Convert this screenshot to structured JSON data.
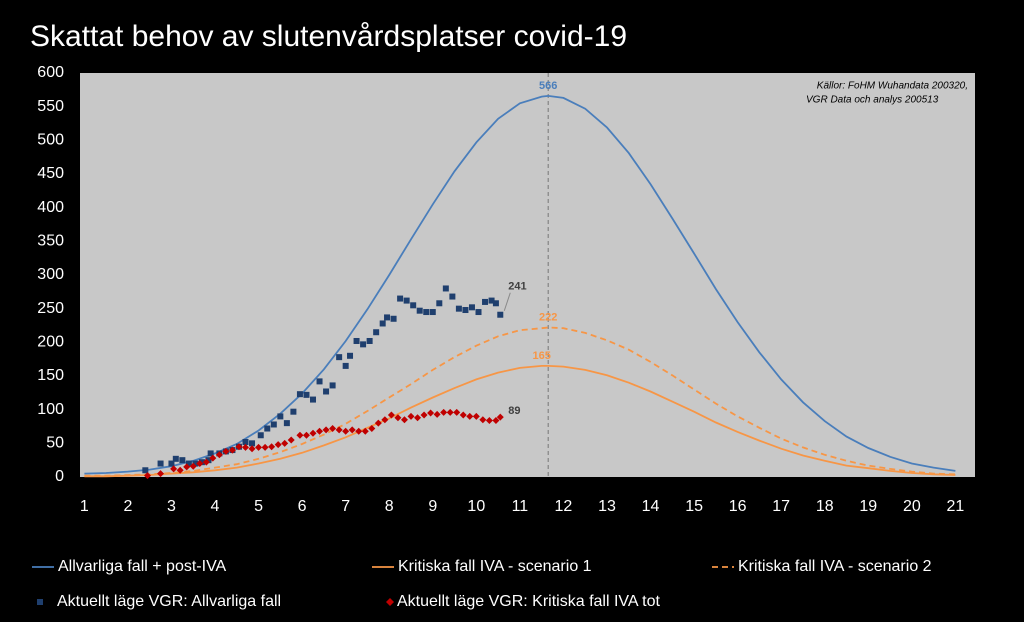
{
  "chart_data": {
    "type": "line",
    "title": "Skattat behov av slutenvårdsplatser covid-19",
    "source_note": [
      "Källor: FoHM Wuhandata 200320,",
      "VGR Data och analys 200513"
    ],
    "xlim": [
      0.9,
      21.45
    ],
    "xticks": [
      1,
      2,
      3,
      4,
      5,
      6,
      7,
      8,
      9,
      10,
      11,
      12,
      13,
      14,
      15,
      16,
      17,
      18,
      19,
      20,
      21
    ],
    "ylim": [
      0,
      600
    ],
    "yticks": [
      0,
      50,
      100,
      150,
      200,
      250,
      300,
      350,
      400,
      450,
      500,
      550,
      600
    ],
    "grid": false,
    "peak_marker": true,
    "x": [
      1,
      1.5,
      2,
      2.5,
      3,
      3.5,
      4,
      4.5,
      5,
      5.5,
      6,
      6.5,
      7,
      7.5,
      8,
      8.5,
      9,
      9.5,
      10,
      10.5,
      11,
      11.5,
      11.65,
      12,
      12.5,
      13,
      13.5,
      14,
      14.5,
      15,
      15.5,
      16,
      16.5,
      17,
      17.5,
      18,
      18.5,
      19,
      19.5,
      20,
      20.5,
      21
    ],
    "series": [
      {
        "name": "Allvarliga fall + post-IVA",
        "type": "line",
        "style": "solid",
        "color": "#4a7ebb",
        "label": "max",
        "label_color": "#4a7ebb",
        "values": [
          5,
          6,
          8,
          11,
          16,
          24,
          35,
          49,
          69,
          94,
          124,
          160,
          202,
          249,
          300,
          353,
          405,
          454,
          497,
          532,
          555,
          565,
          566,
          563,
          547,
          519,
          481,
          435,
          384,
          332,
          279,
          230,
          185,
          145,
          111,
          83,
          60,
          43,
          30,
          20,
          14,
          9
        ]
      },
      {
        "name": "Kritiska fall IVA - scenario 1",
        "type": "line",
        "style": "solid",
        "color": "#f79646",
        "label": "max",
        "label_color": "#f79646",
        "values": [
          1,
          1,
          2,
          3,
          5,
          7,
          10,
          14,
          20,
          27,
          36,
          47,
          59,
          73,
          87,
          103,
          118,
          132,
          145,
          155,
          162,
          165,
          165,
          164,
          159,
          151,
          140,
          127,
          112,
          97,
          81,
          67,
          54,
          42,
          32,
          24,
          17,
          13,
          9,
          6,
          4,
          3
        ]
      },
      {
        "name": "Kritiska fall IVA - scenario 2",
        "type": "line",
        "style": "dashed",
        "color": "#f79646",
        "label": "max",
        "label_color": "#f79646",
        "values": [
          2,
          2,
          3,
          4,
          6,
          9,
          14,
          19,
          27,
          37,
          49,
          63,
          79,
          98,
          118,
          138,
          159,
          178,
          195,
          209,
          218,
          221,
          222,
          221,
          214,
          203,
          189,
          171,
          151,
          130,
          109,
          90,
          73,
          57,
          44,
          33,
          24,
          17,
          12,
          8,
          5,
          4
        ]
      },
      {
        "name": "Aktuellt läge VGR: Allvarliga fall",
        "type": "scatter",
        "marker": "square",
        "color": "#1f3f6e",
        "label": "last",
        "label_color": "#404040",
        "x": [
          2.4,
          2.75,
          3.0,
          3.1,
          3.25,
          3.4,
          3.55,
          3.7,
          3.85,
          3.9,
          4.1,
          4.25,
          4.4,
          4.55,
          4.7,
          4.85,
          5.05,
          5.2,
          5.35,
          5.5,
          5.65,
          5.8,
          5.95,
          6.1,
          6.25,
          6.4,
          6.55,
          6.7,
          6.85,
          7.0,
          7.1,
          7.25,
          7.4,
          7.55,
          7.7,
          7.85,
          7.95,
          8.1,
          8.25,
          8.4,
          8.55,
          8.7,
          8.85,
          9.0,
          9.15,
          9.3,
          9.45,
          9.6,
          9.75,
          9.9,
          10.05,
          10.2,
          10.35,
          10.45,
          10.55
        ],
        "values": [
          10,
          20,
          20,
          27,
          25,
          20,
          20,
          22,
          25,
          35,
          35,
          38,
          40,
          45,
          52,
          50,
          62,
          72,
          78,
          90,
          80,
          97,
          123,
          122,
          115,
          142,
          127,
          136,
          178,
          165,
          180,
          202,
          197,
          202,
          215,
          228,
          237,
          235,
          265,
          262,
          255,
          247,
          245,
          245,
          258,
          280,
          268,
          250,
          248,
          252,
          245,
          260,
          262,
          258,
          241
        ]
      },
      {
        "name": "Aktuellt läge VGR: Kritiska fall IVA tot",
        "type": "scatter",
        "marker": "diamond",
        "color": "#c00000",
        "label": "last",
        "label_color": "#404040",
        "x": [
          2.45,
          2.75,
          3.05,
          3.2,
          3.35,
          3.5,
          3.65,
          3.8,
          3.95,
          4.1,
          4.25,
          4.4,
          4.55,
          4.7,
          4.85,
          5.0,
          5.15,
          5.3,
          5.45,
          5.6,
          5.75,
          5.95,
          6.1,
          6.25,
          6.4,
          6.55,
          6.7,
          6.85,
          7.0,
          7.15,
          7.3,
          7.45,
          7.6,
          7.75,
          7.9,
          8.05,
          8.2,
          8.35,
          8.5,
          8.65,
          8.8,
          8.95,
          9.1,
          9.25,
          9.4,
          9.55,
          9.7,
          9.85,
          10.0,
          10.15,
          10.3,
          10.45,
          10.55
        ],
        "values": [
          2,
          5,
          12,
          10,
          15,
          16,
          20,
          22,
          28,
          33,
          38,
          40,
          45,
          44,
          42,
          44,
          44,
          45,
          48,
          50,
          55,
          62,
          62,
          65,
          68,
          70,
          72,
          70,
          68,
          70,
          68,
          68,
          72,
          80,
          85,
          92,
          88,
          85,
          90,
          88,
          92,
          95,
          93,
          96,
          96,
          96,
          92,
          90,
          90,
          85,
          84,
          84,
          89
        ]
      }
    ]
  }
}
